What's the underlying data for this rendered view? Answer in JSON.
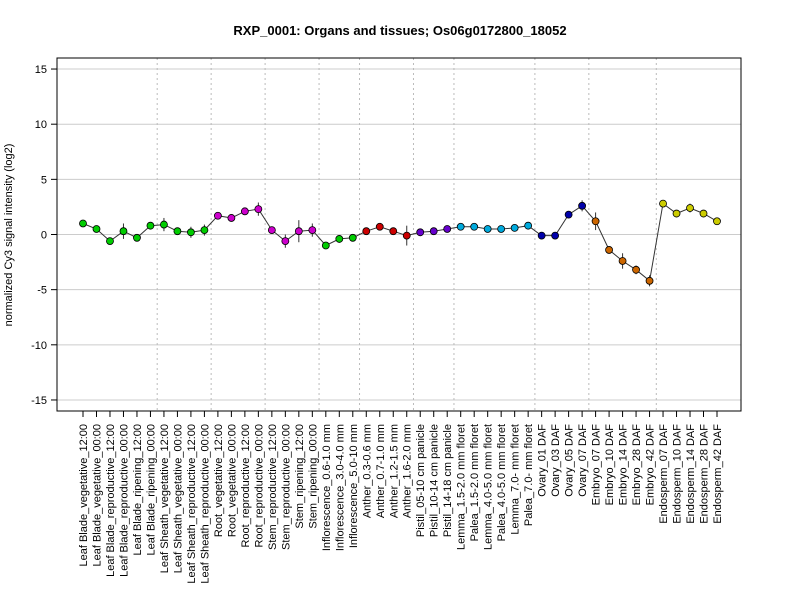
{
  "chart_data": {
    "type": "line",
    "title": "RXP_0001: Organs and tissues; Os06g0172800_18052",
    "ylabel": "normalized Cy3 signal intensity (log2)",
    "xlabel": "",
    "ylim": [
      -16,
      16
    ],
    "yticks": [
      -15,
      -10,
      -5,
      0,
      5,
      10,
      15
    ],
    "grid": "horizontal",
    "categories": [
      "Leaf Blade_vegetative_12:00",
      "Leaf Blade_vegetative_00:00",
      "Leaf Blade_reproductive_12:00",
      "Leaf Blade_reproductive_00:00",
      "Leaf Blade_ripening_12:00",
      "Leaf Blade_ripening_00:00",
      "Leaf Sheath_vegetative_12:00",
      "Leaf Sheath_vegetative_00:00",
      "Leaf Sheath_reproductive_12:00",
      "Leaf Sheath_reproductive_00:00",
      "Root_vegetative_12:00",
      "Root_vegetative_00:00",
      "Root_reproductive_12:00",
      "Root_reproductive_00:00",
      "Stem_reproductive_12:00",
      "Stem_reproductive_00:00",
      "Stem_ripening_12:00",
      "Stem_ripening_00:00",
      "Inflorescence_0.6-1.0 mm",
      "Inflorescence_3.0-4.0 mm",
      "Inflorescence_5.0-10 mm",
      "Anther_0.3-0.6 mm",
      "Anther_0.7-1.0 mm",
      "Anther_1.2-1.5 mm",
      "Anther_1.6-2.0 mm",
      "Pistil_05-10 cm panicle",
      "Pistil_10-14 cm panicle",
      "Pistil_14-18 cm panicle",
      "Lemma_1.5-2.0 mm floret",
      "Palea_1.5-2.0 mm floret",
      "Lemma_4.0-5.0 mm floret",
      "Palea_4.0-5.0 mm floret",
      "Lemma_7.0- mm floret",
      "Palea_7.0- mm floret",
      "Ovary_01 DAF",
      "Ovary_03 DAF",
      "Ovary_05 DAF",
      "Ovary_07 DAF",
      "Embryo_07 DAF",
      "Embryo_10 DAF",
      "Embryo_14 DAF",
      "Embryo_28 DAF",
      "Embryo_42 DAF",
      "Endosperm_07 DAF",
      "Endosperm_10 DAF",
      "Endosperm_14 DAF",
      "Endosperm_28 DAF",
      "Endosperm_42 DAF"
    ],
    "values": [
      1.0,
      0.5,
      -0.6,
      0.3,
      -0.3,
      0.8,
      0.9,
      0.3,
      0.2,
      0.4,
      1.7,
      1.5,
      2.1,
      2.3,
      0.4,
      -0.6,
      0.3,
      0.4,
      -1.0,
      -0.4,
      -0.3,
      0.3,
      0.7,
      0.3,
      -0.1,
      0.2,
      0.3,
      0.5,
      0.7,
      0.7,
      0.5,
      0.5,
      0.6,
      0.8,
      -0.1,
      -0.1,
      1.8,
      2.6,
      1.2,
      -1.4,
      -2.4,
      -3.2,
      -4.2,
      2.8,
      1.9,
      2.4,
      1.9,
      1.2
    ],
    "errors": [
      0.1,
      0.1,
      0.2,
      0.7,
      0.3,
      0.2,
      0.6,
      0.1,
      0.5,
      0.5,
      0.2,
      0.1,
      0.2,
      0.6,
      0.2,
      0.6,
      1.0,
      0.6,
      0.1,
      0.1,
      0.1,
      0.3,
      0.2,
      0.2,
      0.9,
      0.2,
      0.1,
      0.1,
      0.1,
      0.1,
      0.1,
      0.1,
      0.3,
      0.1,
      0.2,
      0.1,
      0.3,
      0.5,
      0.8,
      0.3,
      0.7,
      0.4,
      0.5,
      0.2,
      0.3,
      0.4,
      0.1,
      0.3
    ],
    "point_colors": [
      "#00cc00",
      "#00cc00",
      "#00cc00",
      "#00cc00",
      "#00cc00",
      "#00cc00",
      "#00cc00",
      "#00cc00",
      "#00cc00",
      "#00cc00",
      "#cc00cc",
      "#cc00cc",
      "#cc00cc",
      "#cc00cc",
      "#cc00cc",
      "#cc00cc",
      "#cc00cc",
      "#cc00cc",
      "#00cc00",
      "#00cc00",
      "#00cc00",
      "#cc0000",
      "#cc0000",
      "#cc0000",
      "#cc0000",
      "#6600cc",
      "#6600cc",
      "#6600cc",
      "#00aadd",
      "#00aadd",
      "#00aadd",
      "#00aadd",
      "#00aadd",
      "#00aadd",
      "#0000aa",
      "#0000aa",
      "#0000aa",
      "#0000aa",
      "#cc6600",
      "#cc6600",
      "#cc6600",
      "#cc6600",
      "#cc6600",
      "#cccc00",
      "#cccc00",
      "#cccc00",
      "#cccc00",
      "#cccc00"
    ],
    "group_boundaries_after": [
      5,
      9,
      13,
      17,
      20,
      24,
      27,
      33,
      37,
      42
    ]
  }
}
